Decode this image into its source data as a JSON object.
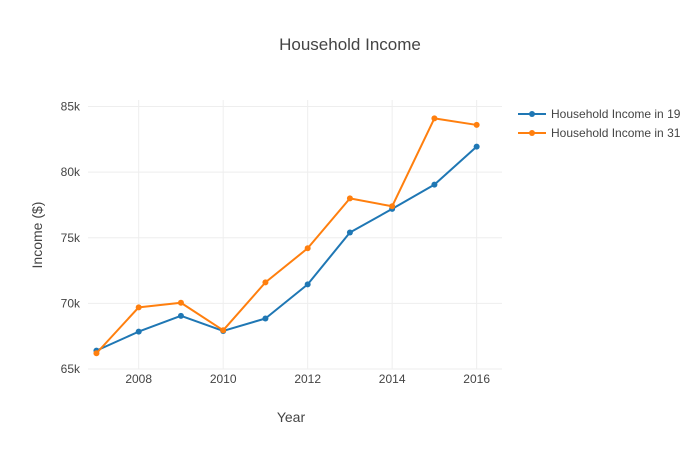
{
  "chart_data": {
    "type": "line",
    "title": "Household Income",
    "xlabel": "Year",
    "ylabel": "Income ($)",
    "x": [
      2007,
      2008,
      2009,
      2010,
      2011,
      2012,
      2013,
      2014,
      2015,
      2016
    ],
    "xlim": [
      2006.8,
      2016.6
    ],
    "ylim": [
      65000,
      85500
    ],
    "xticks": [
      2008,
      2010,
      2012,
      2014,
      2016
    ],
    "xtick_labels": [
      "2008",
      "2010",
      "2012",
      "2014",
      "2016"
    ],
    "yticks": [
      65000,
      70000,
      75000,
      80000,
      85000
    ],
    "ytick_labels": [
      "65k",
      "70k",
      "75k",
      "80k",
      "85k"
    ],
    "grid": true,
    "legend_position": "top-right",
    "series": [
      {
        "name": "Household Income in 19",
        "color": "#1f77b4",
        "values": [
          66400,
          67850,
          69050,
          67900,
          68850,
          71450,
          75400,
          77200,
          79050,
          81950
        ]
      },
      {
        "name": "Household Income in 31",
        "color": "#ff7f0e",
        "values": [
          66200,
          69700,
          70050,
          67950,
          71600,
          74200,
          78000,
          77400,
          84100,
          83600
        ]
      }
    ]
  }
}
